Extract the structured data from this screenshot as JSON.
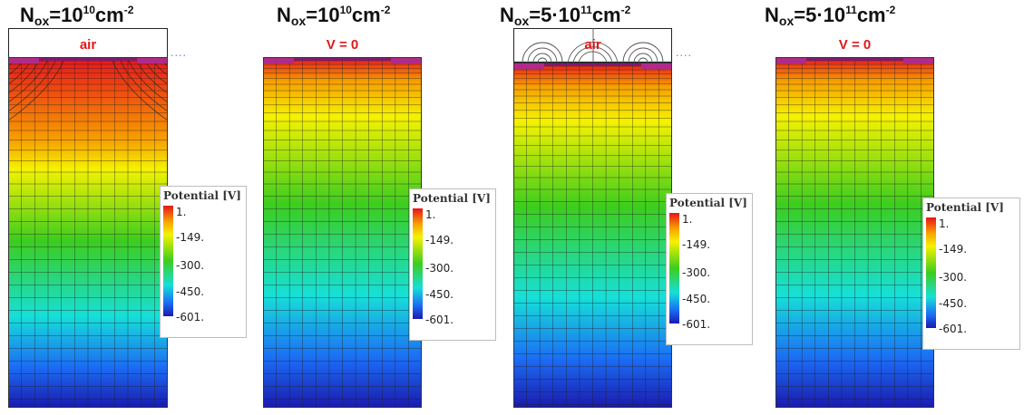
{
  "panels": [
    {
      "n_label": "N",
      "n_sub": "ox",
      "eq": "=10",
      "exp": "10",
      "unit": "cm",
      "unit_exp": "-2",
      "region_label": "air"
    },
    {
      "n_label": "N",
      "n_sub": "ox",
      "eq": "=10",
      "exp": "10",
      "unit": "cm",
      "unit_exp": "-2",
      "region_label": "V = 0"
    },
    {
      "n_label": "N",
      "n_sub": "ox",
      "eq": "=5·10",
      "exp": "11",
      "unit": "cm",
      "unit_exp": "-2",
      "region_label": "air"
    },
    {
      "n_label": "N",
      "n_sub": "ox",
      "eq": "=5·10",
      "exp": "11",
      "unit": "cm",
      "unit_exp": "-2",
      "region_label": "V = 0"
    }
  ],
  "legend": {
    "title": "Potential [V]",
    "ticks": [
      "1.",
      "-149.",
      "-300.",
      "-450.",
      "-601."
    ]
  },
  "colors": {
    "red": "#e8131b",
    "orange": "#f7a000",
    "yellow": "#f5f200",
    "green": "#3ccd1e",
    "cyan": "#16e0d8",
    "blue": "#1b6cf5",
    "navy": "#1a1aae",
    "label_red": "#e01818"
  }
}
